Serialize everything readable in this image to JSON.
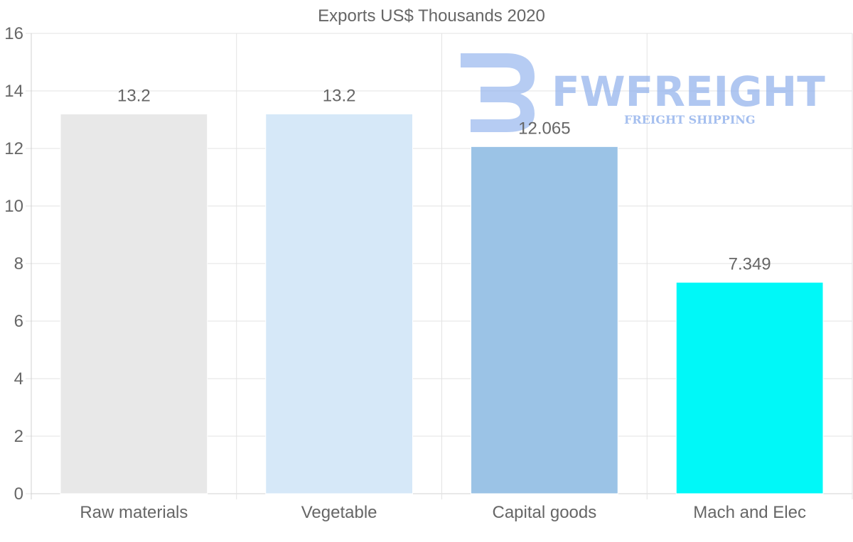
{
  "chart_data": {
    "type": "bar",
    "title": "Exports US$ Thousands 2020",
    "categories": [
      "Raw materials",
      "Vegetable",
      "Capital goods",
      "Mach and Elec"
    ],
    "values": [
      13.2,
      13.2,
      12.065,
      7.349
    ],
    "value_labels": [
      "13.2",
      "13.2",
      "12.065",
      "7.349"
    ],
    "colors": [
      "#e8e8e8",
      "#d6e8f8",
      "#9bc3e6",
      "#00f8f8"
    ],
    "ylim": [
      0,
      16
    ],
    "yticks": [
      0,
      2,
      4,
      6,
      8,
      10,
      12,
      14,
      16
    ],
    "xlabel": "",
    "ylabel": "",
    "grid": true
  },
  "watermark": {
    "brand": "FWFREIGHT",
    "tagline": "FREIGHT SHIPPING",
    "color": "#8fb0ec"
  }
}
